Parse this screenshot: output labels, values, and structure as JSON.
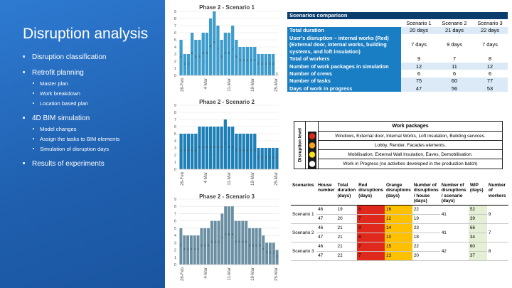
{
  "slide": {
    "title": "Disruption analysis",
    "menu": [
      {
        "level": 1,
        "label": "Disruption classification"
      },
      {
        "level": 1,
        "label": "Retrofit planning"
      },
      {
        "level": 2,
        "label": "Master plan"
      },
      {
        "level": 2,
        "label": "Work breakdown"
      },
      {
        "level": 2,
        "label": "Location based plan"
      },
      {
        "level": 1,
        "label": "4D BIM simulation"
      },
      {
        "level": 2,
        "label": "Model changes"
      },
      {
        "level": 2,
        "label": "Assign the tasks to BIM elements"
      },
      {
        "level": 2,
        "label": "Simulation of disruption days"
      },
      {
        "level": 1,
        "label": "Results of experiments"
      }
    ]
  },
  "chart_data": [
    {
      "type": "bar",
      "title": "Phase 2 - Scenario 1",
      "ylim": [
        0,
        9
      ],
      "yticks": [
        "0",
        "1",
        "2",
        "3",
        "4",
        "5",
        "6",
        "7",
        "8",
        "9"
      ],
      "xticks": [
        "26-Feb",
        "4-Mar",
        "11-Mar",
        "18-Mar",
        "25-Mar"
      ],
      "values": [
        5,
        3,
        3,
        6,
        5,
        5,
        6,
        6,
        8,
        9,
        7,
        5,
        6,
        6,
        7,
        5,
        4,
        4,
        4,
        4,
        4,
        3,
        3,
        3,
        3,
        3,
        0
      ],
      "color": "#3d9ccc"
    },
    {
      "type": "bar",
      "title": "Phase 2 - Scenario 2",
      "ylim": [
        0,
        9
      ],
      "yticks": [
        "0",
        "1",
        "2",
        "3",
        "4",
        "5",
        "6",
        "7",
        "8",
        "9"
      ],
      "xticks": [
        "26-Feb",
        "4-Mar",
        "11-Mar",
        "18-Mar",
        "25-Mar"
      ],
      "values": [
        5,
        5,
        5,
        5,
        5,
        6,
        6,
        6,
        6,
        6,
        6,
        6,
        7,
        6,
        6,
        5,
        5,
        5,
        5,
        5,
        5,
        3,
        3,
        3,
        3,
        3,
        3
      ],
      "color": "#1e7fb6"
    },
    {
      "type": "bar",
      "title": "Phase 2 - Scenario 3",
      "ylim": [
        0,
        9
      ],
      "yticks": [
        "0",
        "1",
        "2",
        "3",
        "4",
        "5",
        "6",
        "7",
        "8",
        "9"
      ],
      "xticks": [
        "26-Feb",
        "4-Mar",
        "11-Mar",
        "18-Mar",
        "25-Mar"
      ],
      "values": [
        5,
        4,
        4,
        4,
        4,
        4,
        5,
        5,
        5,
        6,
        6,
        6,
        7,
        8,
        8,
        8,
        6,
        6,
        6,
        6,
        5,
        5,
        5,
        5,
        4,
        3,
        3,
        3,
        2
      ],
      "color": "#6a8fa3"
    }
  ],
  "comparison": {
    "title": "Scenarios comparison",
    "columns": [
      "Scenario 1",
      "Scenario 2",
      "Scenario 3"
    ],
    "rows": [
      {
        "label": "Total duration",
        "values": [
          "20 days",
          "21 days",
          "22 days"
        ],
        "style": "d1"
      },
      {
        "label": "User's disruption – internal works (Red) (External door, internal works, building systems, and loft insulation)",
        "values": [
          "7 days",
          "9 days",
          "7 days"
        ],
        "style": "d2",
        "tall": true
      },
      {
        "label": "Total of workers",
        "values": [
          "9",
          "7",
          "8"
        ],
        "style": "d2"
      },
      {
        "label": "Number of work packages in simulation",
        "values": [
          "12",
          "11",
          "12"
        ],
        "style": "d1"
      },
      {
        "label": "Number of crews",
        "values": [
          "6",
          "6",
          "6"
        ],
        "style": "d2"
      },
      {
        "label": "Number of tasks",
        "values": [
          "75",
          "60",
          "77"
        ],
        "style": "d1"
      },
      {
        "label": "Days of work in progress",
        "values": [
          "47",
          "56",
          "53"
        ],
        "style": "d1"
      }
    ]
  },
  "legend": {
    "side_label": "Disruption level",
    "header": "Work packages",
    "rows": [
      {
        "color": "#e0281c",
        "text": "Windows, External door, Internal Works, Loft insulation, Building services."
      },
      {
        "color": "#f4a31b",
        "text": "Lobby, Render, Facades elements."
      },
      {
        "color": "#f6e21d",
        "text": "Mobilisation, External Wall Insulation, Eaves, Demobilisation."
      },
      {
        "color": "#ffffff",
        "text": "Work in Progress (no activities developed in the production batch)"
      }
    ]
  },
  "results": {
    "headers": [
      "Scenarios",
      "House number",
      "Total duration (days)",
      "Red disruptions (days)",
      "Orange disruptions (days)",
      "Number of disruptions / house (days)",
      "Number of disruptions / scenario (days)",
      "WIP (days)",
      "Number of workers"
    ],
    "groups": [
      {
        "name": "Scenario 1",
        "per_scenario": "41",
        "workers": "9",
        "rows": [
          {
            "house": "46",
            "total": "19",
            "red": "6",
            "orange": "16",
            "per_house": "22",
            "wip": "52"
          },
          {
            "house": "47",
            "total": "20",
            "red": "7",
            "orange": "12",
            "per_house": "19",
            "wip": "39"
          }
        ]
      },
      {
        "name": "Scenario 2",
        "per_scenario": "41",
        "workers": "7",
        "rows": [
          {
            "house": "46",
            "total": "21",
            "red": "9",
            "orange": "14",
            "per_house": "23",
            "wip": "66"
          },
          {
            "house": "47",
            "total": "21",
            "red": "8",
            "orange": "10",
            "per_house": "18",
            "wip": "34"
          }
        ]
      },
      {
        "name": "Scenario 3",
        "per_scenario": "42",
        "workers": "8",
        "rows": [
          {
            "house": "46",
            "total": "21",
            "red": "7",
            "orange": "15",
            "per_house": "22",
            "wip": "60"
          },
          {
            "house": "47",
            "total": "22",
            "red": "7",
            "orange": "13",
            "per_house": "20",
            "wip": "37"
          }
        ]
      }
    ]
  }
}
